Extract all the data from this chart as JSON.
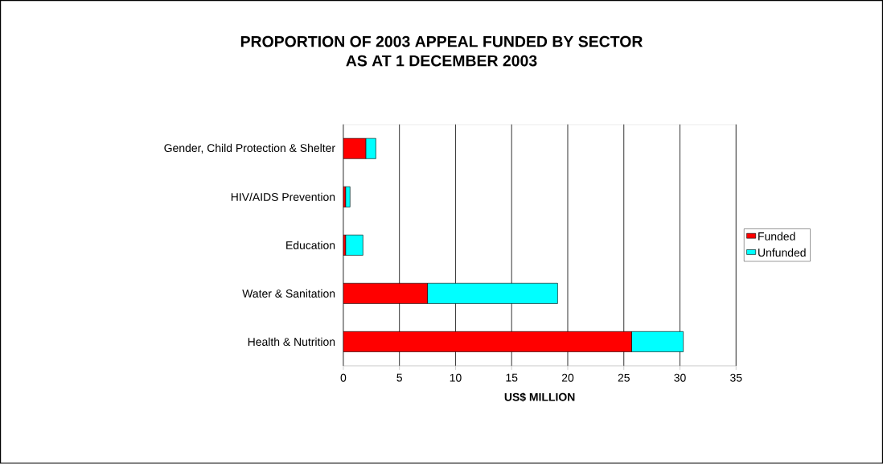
{
  "chart_data": {
    "type": "bar",
    "orientation": "horizontal",
    "stacked": true,
    "title": "PROPORTION OF 2003 APPEAL FUNDED BY SECTOR",
    "subtitle": "AS AT 1 DECEMBER 2003",
    "xlabel": "US$ MILLION",
    "categories": [
      "Gender, Child Protection & Shelter",
      "HIV/AIDS Prevention",
      "Education",
      "Water & Sanitation",
      "Health & Nutrition"
    ],
    "series": [
      {
        "name": "Funded",
        "color": "#ff0000",
        "values": [
          2.0,
          0.2,
          0.2,
          7.5,
          25.7
        ]
      },
      {
        "name": "Unfunded",
        "color": "#00ffff",
        "values": [
          0.9,
          0.4,
          1.55,
          11.6,
          4.6
        ]
      }
    ],
    "xlim": [
      0,
      35
    ],
    "xticks": [
      0,
      5,
      10,
      15,
      20,
      25,
      30,
      35
    ],
    "grid": "x",
    "legend": "right"
  }
}
